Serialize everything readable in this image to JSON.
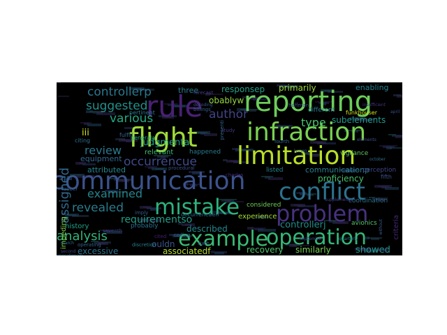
{
  "wordcloud": {
    "words": [
      {
        "text": "reporting",
        "color": "#6ccd5a"
      },
      {
        "text": "rule",
        "color": "#482173"
      },
      {
        "text": "flight",
        "color": "#a0da39"
      },
      {
        "text": "infraction",
        "color": "#7ad151"
      },
      {
        "text": "limitation",
        "color": "#b8de29"
      },
      {
        "text": "communication",
        "color": "#3b528b"
      },
      {
        "text": "conflict",
        "color": "#2c728e"
      },
      {
        "text": "mistake",
        "color": "#2db27d"
      },
      {
        "text": "problem",
        "color": "#46327e"
      },
      {
        "text": "example",
        "color": "#3bbb75"
      },
      {
        "text": "operation",
        "color": "#35b779"
      },
      {
        "text": "controllerp",
        "color": "#2a788e"
      },
      {
        "text": "suggested",
        "color": "#21918c"
      },
      {
        "text": "various",
        "color": "#22a884"
      },
      {
        "text": "author",
        "color": "#414487"
      },
      {
        "text": "type",
        "color": "#4ac16d"
      },
      {
        "text": "review",
        "color": "#2a788e"
      },
      {
        "text": "occurrencue",
        "color": "#3e4a89"
      },
      {
        "text": "assigned",
        "color": "#31688e"
      },
      {
        "text": "judgmenta",
        "color": "#1fa187"
      },
      {
        "text": "examined",
        "color": "#25858e"
      },
      {
        "text": "revealed",
        "color": "#287c8e"
      },
      {
        "text": "requirementso",
        "color": "#1f9e89"
      },
      {
        "text": "analysis",
        "color": "#31b57b"
      },
      {
        "text": "described",
        "color": "#23888e"
      },
      {
        "text": "controllerj",
        "color": "#228d8d"
      },
      {
        "text": "showed",
        "color": "#1e9c89"
      },
      {
        "text": "recovery",
        "color": "#4ec36b"
      },
      {
        "text": "similarly",
        "color": "#7ad151"
      },
      {
        "text": "excessive",
        "color": "#2c728e"
      },
      {
        "text": "associatedf",
        "color": "#b5de2b"
      },
      {
        "text": "ouldn",
        "color": "#39568c"
      },
      {
        "text": "responsep",
        "color": "#1fa088"
      },
      {
        "text": "primarily",
        "color": "#9fda3a"
      },
      {
        "text": "three",
        "color": "#27808e"
      },
      {
        "text": "enabling",
        "color": "#277f8e"
      },
      {
        "text": "subelements",
        "color": "#1f998a"
      },
      {
        "text": "proficiency",
        "color": "#48c16e"
      },
      {
        "text": "communicationp",
        "color": "#27808e"
      },
      {
        "text": "experience",
        "color": "#a8db34"
      },
      {
        "text": "obablyw",
        "color": "#95d840"
      },
      {
        "text": "iii",
        "color": "#d2e21b"
      },
      {
        "text": "attributed",
        "color": "#24868e"
      },
      {
        "text": "equipment",
        "color": "#31678e"
      },
      {
        "text": "history",
        "color": "#1fa287"
      },
      {
        "text": "impeding",
        "color": "#83d34b"
      },
      {
        "text": "probably",
        "color": "#2d708e"
      },
      {
        "text": "avionics",
        "color": "#56c667"
      },
      {
        "text": "criteria",
        "color": "#482878"
      },
      {
        "text": "coordination",
        "color": "#2c728e"
      },
      {
        "text": "relevant",
        "color": "#3dbc74"
      },
      {
        "text": "happened",
        "color": "#287d8e"
      },
      {
        "text": "considered",
        "color": "#6ece58"
      },
      {
        "text": "occurrencaen",
        "color": "#2e6f8e"
      },
      {
        "text": "listed",
        "color": "#24878e"
      },
      {
        "text": "different",
        "color": "#2a768e"
      },
      {
        "text": "vigilance",
        "color": "#5ec962"
      },
      {
        "text": "perception",
        "color": "#3f4788"
      },
      {
        "text": "funkhouser",
        "color": "#d8e219"
      },
      {
        "text": "fifth",
        "color": "#3b518b"
      },
      {
        "text": "pertinent",
        "color": "#2a778e"
      },
      {
        "text": "fulfill",
        "color": "#32658e"
      },
      {
        "text": "citing",
        "color": "#2d708e"
      },
      {
        "text": "generala",
        "color": "#25ab82"
      },
      {
        "text": "discretion",
        "color": "#277e8e"
      },
      {
        "text": "operating",
        "color": "#355f8d"
      },
      {
        "text": "cited",
        "color": "#481f70"
      },
      {
        "text": "imply",
        "color": "#38598c"
      },
      {
        "text": "forecast",
        "color": "#433e85"
      },
      {
        "text": "coding",
        "color": "#2e6e8e"
      },
      {
        "text": "presenti",
        "color": "#31678e"
      },
      {
        "text": "procedural",
        "color": "#3c4f8a"
      },
      {
        "text": "fourth",
        "color": "#33638d"
      },
      {
        "text": "lauber",
        "color": "#365c8d"
      },
      {
        "text": "sixth",
        "color": "#3a548c"
      },
      {
        "text": "seventh",
        "color": "#423f85"
      },
      {
        "text": "march",
        "color": "#2d708e"
      },
      {
        "text": "second",
        "color": "#404688"
      },
      {
        "text": "september",
        "color": "#3e4989"
      },
      {
        "text": "quarterly",
        "color": "#27808e"
      },
      {
        "text": "without",
        "color": "#38588c"
      },
      {
        "text": "april",
        "color": "#3d4e8a"
      },
      {
        "text": "october",
        "color": "#2e6d8e"
      },
      {
        "text": "hoffman",
        "color": "#3d4d8a"
      },
      {
        "text": "billings",
        "color": "#355e8d"
      },
      {
        "text": "study",
        "color": "#453781"
      },
      {
        "text": "charles",
        "color": "#472d7b"
      },
      {
        "text": "decoding",
        "color": "#3a538b"
      },
      {
        "text": "lyman",
        "color": "#30698e"
      },
      {
        "text": "actual",
        "color": "#355f8d"
      },
      {
        "text": "operationalp",
        "color": "#2c718e"
      },
      {
        "text": "insufficient",
        "color": "#46327e"
      },
      {
        "text": "supplemental",
        "color": "#433d84"
      },
      {
        "text": "elements",
        "color": "#3b528b"
      },
      {
        "text": "neigh",
        "color": "#404588"
      }
    ]
  }
}
